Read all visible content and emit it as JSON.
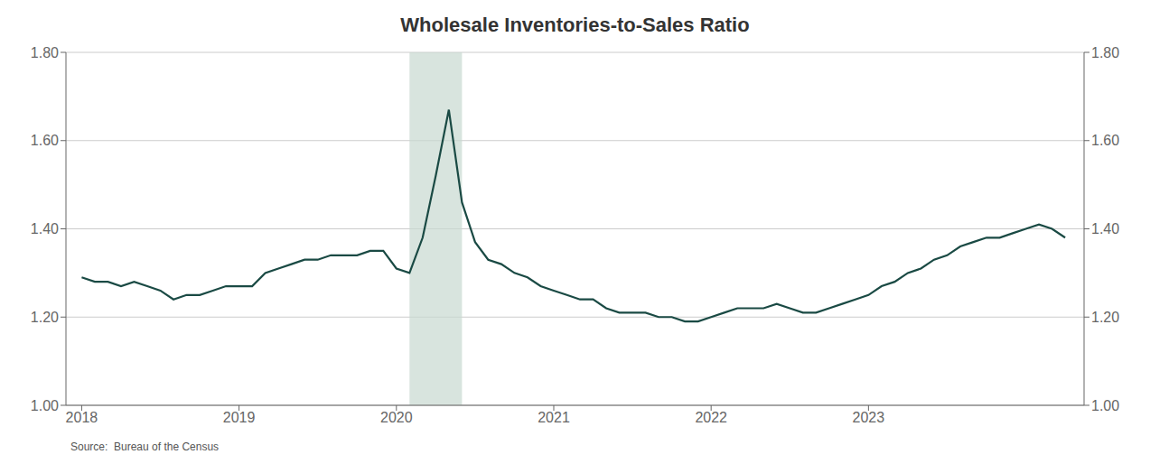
{
  "chart_data": {
    "type": "line",
    "title": "Wholesale Inventories-to-Sales Ratio",
    "annotations": [
      "Source:  Bureau of the Census"
    ],
    "x": [
      2018,
      2018.0833,
      2018.1667,
      2018.25,
      2018.3333,
      2018.4167,
      2018.5,
      2018.5833,
      2018.6667,
      2018.75,
      2018.8333,
      2018.9167,
      2019,
      2019.0833,
      2019.1667,
      2019.25,
      2019.3333,
      2019.4167,
      2019.5,
      2019.5833,
      2019.6667,
      2019.75,
      2019.8333,
      2019.9167,
      2020,
      2020.0833,
      2020.1667,
      2020.25,
      2020.3333,
      2020.4167,
      2020.5,
      2020.5833,
      2020.6667,
      2020.75,
      2020.8333,
      2020.9167,
      2021,
      2021.0833,
      2021.1667,
      2021.25,
      2021.3333,
      2021.4167,
      2021.5,
      2021.5833,
      2021.6667,
      2021.75,
      2021.8333,
      2021.9167,
      2022,
      2022.0833,
      2022.1667,
      2022.25,
      2022.3333,
      2022.4167,
      2022.5,
      2022.5833,
      2022.6667,
      2022.75,
      2022.8333,
      2022.9167,
      2023,
      2023.0833,
      2023.1667,
      2023.25,
      2023.3333,
      2023.4167,
      2023.5,
      2023.5833,
      2023.6667,
      2023.75,
      2023.8333,
      2023.9167,
      2024,
      2024.0833,
      2024.1667,
      2024.25
    ],
    "series": [
      {
        "name": "Wholesale Inventories-to-Sales Ratio",
        "color": "#1a4a44",
        "values": [
          1.29,
          1.28,
          1.28,
          1.27,
          1.28,
          1.27,
          1.26,
          1.24,
          1.25,
          1.25,
          1.26,
          1.27,
          1.27,
          1.27,
          1.3,
          1.31,
          1.32,
          1.33,
          1.33,
          1.34,
          1.34,
          1.34,
          1.35,
          1.35,
          1.31,
          1.3,
          1.38,
          1.52,
          1.67,
          1.46,
          1.37,
          1.33,
          1.32,
          1.3,
          1.29,
          1.27,
          1.26,
          1.25,
          1.24,
          1.24,
          1.22,
          1.21,
          1.21,
          1.21,
          1.2,
          1.2,
          1.19,
          1.19,
          1.2,
          1.21,
          1.22,
          1.22,
          1.22,
          1.23,
          1.22,
          1.21,
          1.21,
          1.22,
          1.23,
          1.24,
          1.25,
          1.27,
          1.28,
          1.3,
          1.31,
          1.33,
          1.34,
          1.36,
          1.37,
          1.38,
          1.38,
          1.39,
          1.4,
          1.41,
          1.4,
          1.38
        ]
      }
    ],
    "shaded_regions": [
      {
        "x1": 2020.0833,
        "x2": 2020.4167,
        "color": "#c8d8d0"
      }
    ],
    "xlim": [
      2017.9,
      2024.37
    ],
    "xticks": [
      2018,
      2019,
      2020,
      2021,
      2022,
      2023
    ],
    "ylim": [
      1.0,
      1.8
    ],
    "yticks": [
      {
        "value": 1.0,
        "label": "1.00"
      },
      {
        "value": 1.2,
        "label": "1.20"
      },
      {
        "value": 1.4,
        "label": "1.40"
      },
      {
        "value": 1.6,
        "label": "1.60"
      },
      {
        "value": 1.8,
        "label": "1.80"
      }
    ],
    "y2lim": [
      1.0,
      1.8
    ],
    "y2ticks": [
      {
        "value": 1.0,
        "label": "1.00"
      },
      {
        "value": 1.2,
        "label": "1.20"
      },
      {
        "value": 1.4,
        "label": "1.40"
      },
      {
        "value": 1.6,
        "label": "1.60"
      },
      {
        "value": 1.8,
        "label": "1.80"
      }
    ],
    "grid": true
  }
}
